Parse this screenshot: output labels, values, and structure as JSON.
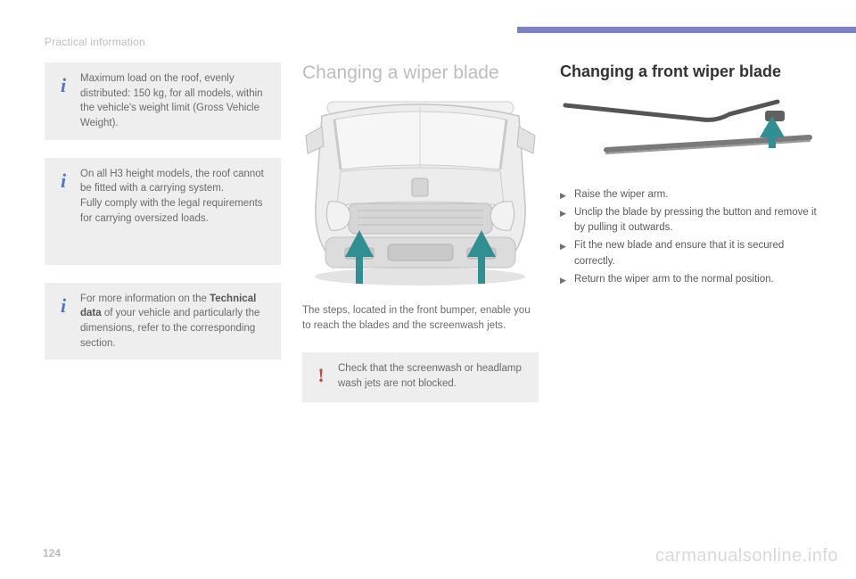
{
  "page": {
    "number": "124",
    "section_label": "Practical information",
    "watermark": "carmanualsonline.info"
  },
  "accent_color": "#7784bf",
  "left": {
    "boxes": [
      {
        "icon": "i",
        "text": "Maximum load on the roof, evenly distributed: 150 kg, for all models, within the vehicle's weight limit (Gross Vehicle Weight)."
      },
      {
        "icon": "i",
        "text_lines": [
          "On all H3 height models, the roof cannot be fitted with a carrying system.",
          "Fully comply with the legal requirements for carrying oversized loads."
        ]
      },
      {
        "icon": "i",
        "html": "For more information on the <span class=\"bold\">Technical data</span> of your vehicle and particularly the dimensions, refer to the corresponding section."
      }
    ]
  },
  "mid": {
    "heading": "Changing a wiper blade",
    "van_svg": {
      "body_fill": "#e9e9e9",
      "body_stroke": "#bfbfbf",
      "grille_fill": "#cfcfcf",
      "arrow_fill": "#2f8f92",
      "shadow": "#dcdcdc"
    },
    "caption": "The steps, located in the front bumper, enable you to reach the blades and the screenwash jets.",
    "warn_box": {
      "icon": "!",
      "text": "Check that the screenwash or headlamp wash jets are not blocked."
    }
  },
  "right": {
    "heading": "Changing a front wiper blade",
    "wiper_svg": {
      "arm_color": "#555555",
      "blade_color": "#777777",
      "arrow_fill": "#2f8f92"
    },
    "steps": [
      "Raise the wiper arm.",
      "Unclip the blade by pressing the button and remove it by pulling it outwards.",
      "Fit the new blade and ensure that it is secured correctly.",
      "Return the wiper arm to the normal position."
    ]
  }
}
